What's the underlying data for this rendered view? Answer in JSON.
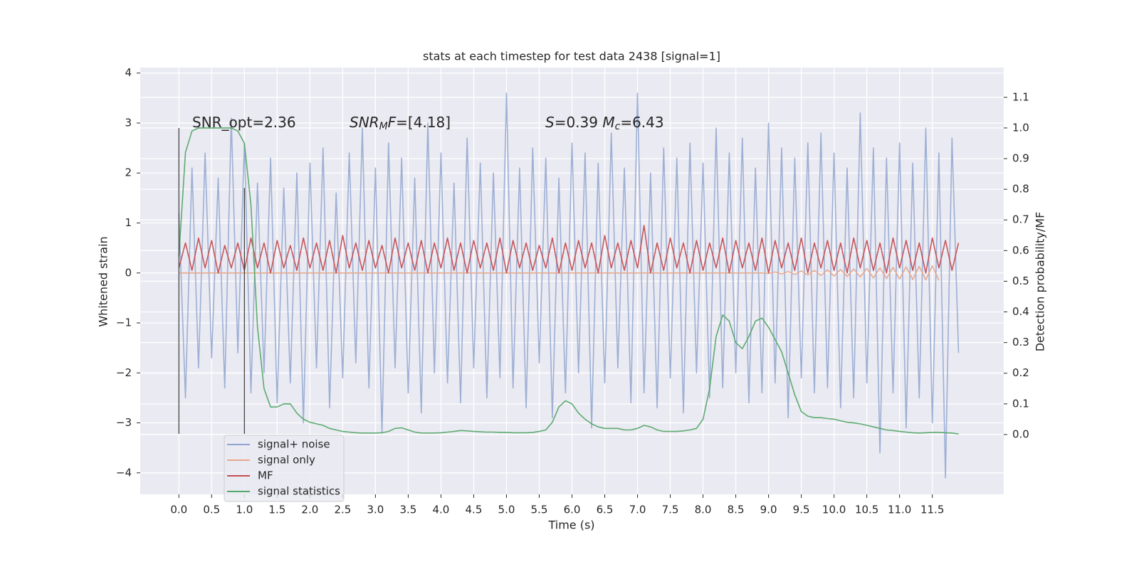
{
  "chart_data": {
    "type": "line",
    "title": "stats at each timestep for test data 2438 [signal=1]",
    "xlabel": "Time (s)",
    "ylabel": "Whitened strain",
    "y2label": "Detection probability/MF",
    "annotations": [
      [
        {
          "t": "SNR_opt=2.36"
        }
      ],
      [
        {
          "t": "SNR",
          "style": "italic"
        },
        {
          "t": "M",
          "style": "sub"
        },
        {
          "t": "F",
          "style": "italic"
        },
        {
          "t": "=[4.18]"
        }
      ],
      [
        {
          "t": "S",
          "style": "italic"
        },
        {
          "t": "=0.39   "
        },
        {
          "t": "M",
          "style": "italic"
        },
        {
          "t": "c",
          "style": "sub"
        },
        {
          "t": "=6.43"
        }
      ]
    ],
    "x": [
      0.0,
      0.1,
      0.2,
      0.3,
      0.4,
      0.5,
      0.6,
      0.7,
      0.8,
      0.9,
      1.0,
      1.1,
      1.2,
      1.3,
      1.4,
      1.5,
      1.6,
      1.7,
      1.8,
      1.9,
      2.0,
      2.1,
      2.2,
      2.3,
      2.4,
      2.5,
      2.6,
      2.7,
      2.8,
      2.9,
      3.0,
      3.1,
      3.2,
      3.3,
      3.4,
      3.5,
      3.6,
      3.7,
      3.8,
      3.9,
      4.0,
      4.1,
      4.2,
      4.3,
      4.4,
      4.5,
      4.6,
      4.7,
      4.8,
      4.9,
      5.0,
      5.1,
      5.2,
      5.3,
      5.4,
      5.5,
      5.6,
      5.7,
      5.8,
      5.9,
      6.0,
      6.1,
      6.2,
      6.3,
      6.4,
      6.5,
      6.6,
      6.7,
      6.8,
      6.9,
      7.0,
      7.1,
      7.2,
      7.3,
      7.4,
      7.5,
      7.6,
      7.7,
      7.8,
      7.9,
      8.0,
      8.1,
      8.2,
      8.3,
      8.4,
      8.5,
      8.6,
      8.7,
      8.8,
      8.9,
      9.0,
      9.1,
      9.2,
      9.3,
      9.4,
      9.5,
      9.6,
      9.7,
      9.8,
      9.9,
      10.0,
      10.1,
      10.2,
      10.3,
      10.4,
      10.5,
      10.6,
      10.7,
      10.8,
      10.9,
      11.0,
      11.1,
      11.2,
      11.3,
      11.4,
      11.5,
      11.6,
      11.7,
      11.8,
      11.9
    ],
    "series": [
      {
        "name": "signal+ noise",
        "color": "#8fa5cf",
        "values": [
          1.2,
          -2.5,
          2.1,
          -1.9,
          2.4,
          -1.7,
          1.9,
          -2.3,
          3.1,
          -1.6,
          2.6,
          -2.4,
          1.8,
          -2.0,
          2.3,
          -2.6,
          1.7,
          -2.2,
          2.0,
          -3.0,
          2.2,
          -1.9,
          2.5,
          -2.7,
          1.6,
          -2.1,
          2.4,
          -1.8,
          2.9,
          -2.3,
          2.1,
          -3.2,
          2.6,
          -1.9,
          2.3,
          -2.4,
          1.9,
          -2.8,
          3.0,
          -2.0,
          2.4,
          -2.2,
          1.8,
          -2.6,
          2.7,
          -1.9,
          2.2,
          -2.5,
          2.0,
          -2.1,
          3.6,
          -2.3,
          2.1,
          -2.7,
          2.5,
          -1.8,
          2.3,
          -2.9,
          1.9,
          -2.4,
          2.6,
          -2.0,
          2.4,
          -3.1,
          2.2,
          -2.2,
          2.8,
          -1.9,
          2.1,
          -2.6,
          3.6,
          -2.4,
          2.0,
          -2.7,
          2.5,
          -2.1,
          2.3,
          -2.8,
          2.6,
          -2.0,
          2.2,
          -2.5,
          2.9,
          -2.3,
          2.4,
          -2.0,
          2.7,
          -2.6,
          2.1,
          -2.4,
          3.0,
          -2.2,
          2.5,
          -2.9,
          2.3,
          -2.1,
          2.6,
          -2.4,
          2.8,
          -2.3,
          2.4,
          -2.7,
          2.1,
          -2.5,
          3.2,
          -2.2,
          2.5,
          -3.6,
          2.3,
          -2.4,
          2.6,
          -3.1,
          2.2,
          -2.5,
          2.9,
          -3.0,
          2.4,
          -4.1,
          2.7,
          -1.6
        ]
      },
      {
        "name": "signal only",
        "color": "#e8a78a",
        "values": [
          0,
          0,
          0,
          0,
          0,
          0,
          0,
          0,
          0,
          0,
          0,
          0,
          0,
          0,
          0,
          0,
          0,
          0,
          0,
          0,
          0,
          0,
          0,
          0,
          0,
          0,
          0,
          0,
          0,
          0,
          0,
          0,
          0,
          0,
          0,
          0,
          0,
          0,
          0,
          0,
          0,
          0,
          0,
          0,
          0,
          0,
          0,
          0,
          0,
          0,
          0,
          0,
          0,
          0,
          0,
          0,
          0,
          0,
          0,
          0,
          0,
          0,
          0,
          0,
          0,
          0,
          0,
          0,
          0,
          0,
          0,
          0,
          0,
          0,
          0,
          0,
          0,
          0,
          0,
          0,
          0,
          0,
          0,
          0,
          0,
          0,
          0,
          0,
          0,
          0,
          -0.01,
          0.02,
          -0.02,
          0.03,
          -0.03,
          0.04,
          -0.04,
          0.05,
          -0.05,
          0.06,
          -0.06,
          0.07,
          -0.07,
          0.08,
          -0.08,
          0.09,
          -0.1,
          0.1,
          -0.11,
          0.11,
          -0.12,
          0.12,
          -0.13,
          0.13,
          -0.14,
          0.14,
          -0.15,
          null,
          null,
          null
        ]
      },
      {
        "name": "MF",
        "color": "#c44e52",
        "values": [
          0.1,
          0.6,
          0.05,
          0.7,
          0.1,
          0.65,
          0.0,
          0.55,
          0.1,
          0.6,
          0.05,
          0.7,
          0.1,
          0.6,
          0.0,
          0.65,
          0.1,
          0.55,
          0.05,
          0.7,
          0.1,
          0.6,
          0.05,
          0.65,
          0.0,
          0.75,
          0.1,
          0.6,
          0.05,
          0.65,
          0.1,
          0.55,
          0.0,
          0.7,
          0.1,
          0.6,
          0.05,
          0.65,
          0.0,
          0.6,
          0.1,
          0.7,
          0.05,
          0.6,
          0.0,
          0.65,
          0.1,
          0.6,
          0.05,
          0.7,
          0.0,
          0.65,
          0.1,
          0.6,
          0.05,
          0.55,
          0.1,
          0.7,
          0.0,
          0.6,
          0.05,
          0.65,
          0.1,
          0.6,
          0.0,
          0.75,
          0.1,
          0.6,
          0.05,
          0.65,
          0.1,
          0.95,
          0.0,
          0.6,
          0.05,
          0.7,
          0.1,
          0.6,
          0.0,
          0.65,
          0.05,
          0.6,
          0.1,
          0.7,
          0.0,
          0.65,
          0.1,
          0.6,
          0.05,
          0.7,
          0.0,
          0.65,
          0.1,
          0.6,
          0.05,
          0.7,
          0.0,
          0.6,
          0.1,
          0.65,
          0.05,
          0.6,
          0.0,
          0.7,
          0.1,
          0.65,
          0.05,
          0.6,
          0.0,
          0.7,
          0.1,
          0.65,
          0.05,
          0.6,
          0.0,
          0.7,
          0.1,
          0.65,
          0.05,
          0.6
        ]
      },
      {
        "name": "signal statistics",
        "color": "#55a868",
        "axis": "y2",
        "values": [
          0.58,
          0.92,
          0.99,
          1.0,
          1.0,
          1.0,
          1.0,
          1.0,
          1.0,
          0.99,
          0.95,
          0.75,
          0.35,
          0.15,
          0.09,
          0.09,
          0.1,
          0.1,
          0.07,
          0.05,
          0.04,
          0.035,
          0.03,
          0.02,
          0.015,
          0.01,
          0.008,
          0.006,
          0.005,
          0.005,
          0.005,
          0.006,
          0.01,
          0.02,
          0.022,
          0.015,
          0.008,
          0.005,
          0.005,
          0.005,
          0.006,
          0.008,
          0.01,
          0.013,
          0.012,
          0.01,
          0.009,
          0.008,
          0.008,
          0.007,
          0.007,
          0.006,
          0.006,
          0.006,
          0.007,
          0.01,
          0.015,
          0.04,
          0.09,
          0.11,
          0.1,
          0.07,
          0.05,
          0.035,
          0.025,
          0.02,
          0.02,
          0.02,
          0.015,
          0.015,
          0.02,
          0.03,
          0.025,
          0.015,
          0.01,
          0.01,
          0.01,
          0.012,
          0.015,
          0.02,
          0.05,
          0.15,
          0.32,
          0.39,
          0.37,
          0.3,
          0.28,
          0.32,
          0.37,
          0.38,
          0.35,
          0.31,
          0.27,
          0.2,
          0.13,
          0.075,
          0.06,
          0.055,
          0.055,
          0.052,
          0.05,
          0.045,
          0.04,
          0.038,
          0.035,
          0.03,
          0.025,
          0.02,
          0.015,
          0.013,
          0.01,
          0.008,
          0.006,
          0.005,
          0.006,
          0.007,
          0.007,
          0.006,
          0.005,
          0.002
        ]
      }
    ],
    "vlines": [
      {
        "x": 0,
        "ymin": -3.22,
        "ymax": 2.9
      },
      {
        "x": 1.0,
        "ymin": -3.22,
        "ymax": 1.7
      }
    ],
    "xlim": [
      -0.59,
      12.59
    ],
    "ylim": [
      -4.43,
      4.11
    ],
    "y2lim": [
      -0.195,
      1.197
    ],
    "xticks": [
      {
        "value": 0,
        "label": "0.0"
      },
      0.5,
      {
        "value": 1,
        "label": "1.0"
      },
      1.5,
      {
        "value": 2,
        "label": "2.0"
      },
      2.5,
      {
        "value": 3,
        "label": "3.0"
      },
      3.5,
      {
        "value": 4,
        "label": "4.0"
      },
      4.5,
      {
        "value": 5,
        "label": "5.0"
      },
      5.5,
      {
        "value": 6,
        "label": "6.0"
      },
      6.5,
      {
        "value": 7,
        "label": "7.0"
      },
      7.5,
      {
        "value": 8,
        "label": "8.0"
      },
      8.5,
      {
        "value": 9,
        "label": "9.0"
      },
      9.5,
      {
        "value": 10,
        "label": "10.0"
      },
      10.5,
      {
        "value": 11,
        "label": "11.0"
      },
      11.5
    ],
    "yticks": [
      {
        "value": -4,
        "label": "−4"
      },
      {
        "value": -3,
        "label": "−3"
      },
      {
        "value": -2,
        "label": "−2"
      },
      {
        "value": -1,
        "label": "−1"
      },
      0,
      1,
      2,
      3,
      4
    ],
    "y2ticks": [
      {
        "value": 0,
        "label": "0.0"
      },
      0.1,
      0.2,
      0.3,
      0.4,
      0.5,
      0.6,
      0.7,
      0.8,
      0.9,
      {
        "value": 1,
        "label": "1.0"
      },
      1.1
    ],
    "grid": true,
    "legend": "lower left"
  }
}
